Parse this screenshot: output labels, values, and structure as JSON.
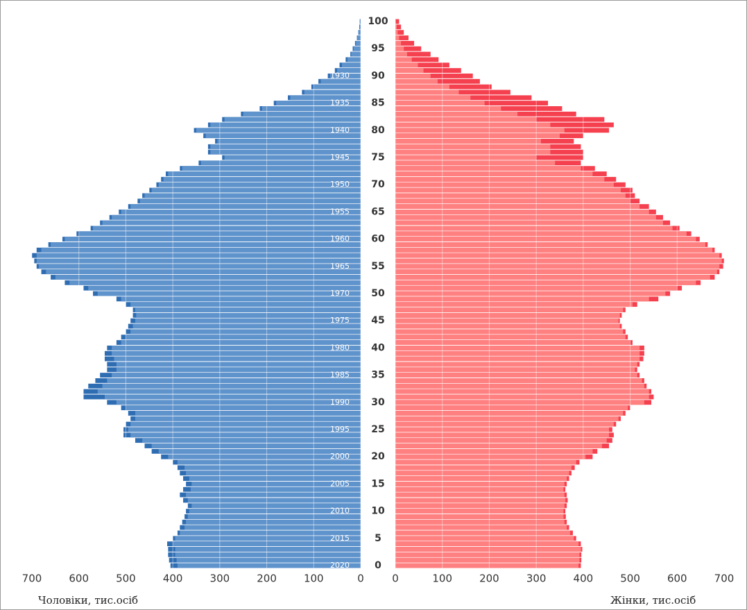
{
  "chart_data": {
    "type": "pyramid",
    "left_label": "Чоловіки, тис.осіб",
    "right_label": "Жінки, тис.осіб",
    "categories": [
      0,
      null,
      null,
      null,
      null,
      5,
      null,
      null,
      null,
      null,
      10,
      null,
      null,
      null,
      null,
      15,
      null,
      null,
      null,
      null,
      20,
      null,
      null,
      null,
      null,
      25,
      null,
      null,
      null,
      null,
      30,
      null,
      null,
      null,
      null,
      35,
      null,
      null,
      null,
      null,
      40,
      null,
      null,
      null,
      null,
      45,
      null,
      null,
      null,
      null,
      50,
      null,
      null,
      null,
      null,
      55,
      null,
      null,
      null,
      null,
      60,
      null,
      null,
      null,
      null,
      65,
      null,
      null,
      null,
      null,
      70,
      null,
      null,
      null,
      null,
      75,
      null,
      null,
      null,
      null,
      80,
      null,
      null,
      null,
      null,
      85,
      null,
      null,
      null,
      null,
      90,
      null,
      null,
      null,
      null,
      95,
      null,
      null,
      null,
      null,
      100
    ],
    "birth_years": [
      2020,
      null,
      null,
      null,
      null,
      2015,
      null,
      null,
      null,
      null,
      2010,
      null,
      null,
      null,
      null,
      2005,
      null,
      null,
      null,
      null,
      2000,
      null,
      null,
      null,
      null,
      1995,
      null,
      null,
      null,
      null,
      1990,
      null,
      null,
      null,
      null,
      1985,
      null,
      null,
      null,
      null,
      1980,
      null,
      null,
      null,
      null,
      1975,
      null,
      null,
      null,
      null,
      1970,
      null,
      null,
      null,
      null,
      1965,
      null,
      null,
      null,
      null,
      1960,
      null,
      null,
      null,
      null,
      1955,
      null,
      null,
      null,
      null,
      1950,
      null,
      null,
      null,
      null,
      1945,
      null,
      null,
      null,
      null,
      1940,
      null,
      null,
      null,
      null,
      1935,
      null,
      null,
      null,
      null,
      1930,
      null,
      null,
      null,
      null,
      null,
      null,
      null,
      null,
      null,
      null
    ],
    "xlim": [
      0,
      700
    ],
    "xticks": [
      0,
      100,
      200,
      300,
      400,
      500,
      600,
      700
    ],
    "series": [
      {
        "side": "left",
        "color": "#2f6db3",
        "values": [
          405,
          408,
          410,
          410,
          412,
          400,
          390,
          385,
          380,
          375,
          372,
          368,
          378,
          385,
          378,
          372,
          378,
          385,
          390,
          400,
          425,
          445,
          460,
          480,
          505,
          505,
          500,
          490,
          495,
          510,
          540,
          590,
          590,
          580,
          565,
          555,
          540,
          540,
          545,
          545,
          540,
          520,
          510,
          500,
          495,
          490,
          485,
          485,
          500,
          520,
          570,
          590,
          630,
          660,
          680,
          690,
          695,
          700,
          690,
          665,
          635,
          605,
          575,
          555,
          535,
          515,
          495,
          475,
          465,
          450,
          435,
          425,
          415,
          385,
          345,
          295,
          325,
          325,
          310,
          335,
          355,
          325,
          295,
          255,
          215,
          185,
          155,
          125,
          105,
          90,
          70,
          55,
          45,
          32,
          22,
          17,
          12,
          8,
          5,
          3,
          2
        ]
      },
      {
        "side": "left",
        "color": "#5f93cc",
        "values": [
          390,
          392,
          395,
          395,
          400,
          395,
          385,
          375,
          372,
          368,
          365,
          360,
          368,
          372,
          362,
          360,
          365,
          372,
          375,
          390,
          410,
          430,
          445,
          465,
          490,
          495,
          490,
          480,
          480,
          500,
          520,
          545,
          560,
          550,
          540,
          530,
          520,
          520,
          525,
          530,
          530,
          510,
          500,
          490,
          485,
          480,
          478,
          480,
          490,
          510,
          560,
          580,
          620,
          650,
          670,
          685,
          690,
          690,
          680,
          660,
          630,
          600,
          570,
          550,
          530,
          510,
          490,
          470,
          460,
          445,
          430,
          420,
          410,
          380,
          340,
          290,
          320,
          320,
          305,
          330,
          350,
          320,
          290,
          250,
          210,
          180,
          150,
          120,
          100,
          85,
          65,
          50,
          40,
          28,
          20,
          15,
          10,
          7,
          4,
          2,
          1
        ]
      },
      {
        "side": "right",
        "color": "#f5404f",
        "values": [
          395,
          396,
          396,
          398,
          395,
          385,
          378,
          370,
          365,
          363,
          362,
          365,
          367,
          365,
          362,
          365,
          370,
          375,
          382,
          392,
          420,
          430,
          455,
          462,
          465,
          462,
          470,
          480,
          490,
          500,
          545,
          550,
          545,
          535,
          530,
          520,
          515,
          520,
          528,
          530,
          530,
          505,
          495,
          490,
          482,
          478,
          482,
          490,
          515,
          560,
          585,
          610,
          650,
          680,
          690,
          698,
          700,
          695,
          680,
          665,
          648,
          630,
          605,
          585,
          570,
          555,
          540,
          520,
          510,
          505,
          490,
          470,
          450,
          425,
          395,
          400,
          400,
          395,
          380,
          400,
          455,
          465,
          445,
          385,
          355,
          325,
          290,
          245,
          205,
          180,
          165,
          140,
          115,
          92,
          75,
          55,
          40,
          28,
          18,
          12,
          8
        ]
      },
      {
        "side": "right",
        "color": "#ff8080",
        "values": [
          390,
          392,
          392,
          395,
          390,
          380,
          372,
          365,
          360,
          358,
          358,
          360,
          362,
          360,
          358,
          360,
          365,
          370,
          375,
          385,
          405,
          420,
          440,
          450,
          455,
          455,
          465,
          475,
          485,
          495,
          530,
          540,
          540,
          530,
          525,
          515,
          510,
          515,
          520,
          520,
          520,
          500,
          490,
          485,
          478,
          475,
          478,
          485,
          505,
          540,
          575,
          600,
          640,
          670,
          685,
          690,
          695,
          690,
          675,
          660,
          640,
          620,
          590,
          570,
          555,
          540,
          520,
          500,
          490,
          480,
          465,
          445,
          420,
          395,
          340,
          300,
          330,
          330,
          310,
          350,
          360,
          330,
          300,
          260,
          225,
          190,
          160,
          135,
          115,
          90,
          75,
          60,
          48,
          35,
          25,
          18,
          12,
          8,
          5,
          3,
          1
        ]
      }
    ]
  }
}
